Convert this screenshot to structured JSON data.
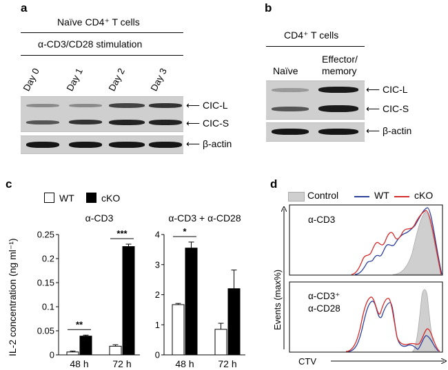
{
  "panel_a": {
    "label": "a",
    "title": "Naïve CD4⁺ T cells",
    "subtitle": "α-CD3/CD28 stimulation",
    "lanes": [
      "Day 0",
      "Day 1",
      "Day 2",
      "Day 3"
    ],
    "bands": [
      "CIC-L",
      "CIC-S",
      "β-actin"
    ]
  },
  "panel_b": {
    "label": "b",
    "title": "CD4⁺ T cells",
    "lanes": [
      "Naïve",
      "Effector/\nmemory"
    ],
    "lane_naive": "Naïve",
    "lane_eff1": "Effector/",
    "lane_eff2": "memory",
    "bands": [
      "CIC-L",
      "CIC-S",
      "β-actin"
    ]
  },
  "panel_c": {
    "label": "c",
    "legend": [
      "WT",
      "cKO"
    ],
    "ylabel": "IL-2 concentration (ng ml⁻¹)",
    "colors": {
      "WT": "#ffffff",
      "cKO": "#000000"
    }
  },
  "panel_d": {
    "label": "d",
    "legend": [
      "Control",
      "WT",
      "cKO"
    ],
    "colors": {
      "Control": "#c8c8c8",
      "WT": "#2a3f9a",
      "cKO": "#d42a2a"
    },
    "top_label": "α-CD3",
    "bottom_label_1": "α-CD3⁺",
    "bottom_label_2": "α-CD28",
    "ylabel": "Events (max%)",
    "xlabel": "CTV"
  },
  "chart_data": [
    {
      "type": "bar",
      "title": "α-CD3",
      "categories": [
        "48 h",
        "72 h"
      ],
      "series": [
        {
          "name": "WT",
          "values": [
            0.006,
            0.018
          ],
          "errors": [
            0.002,
            0.003
          ]
        },
        {
          "name": "cKO",
          "values": [
            0.039,
            0.225
          ],
          "errors": [
            0.002,
            0.005
          ]
        }
      ],
      "ylim": [
        0,
        0.25
      ],
      "yticks": [
        "0",
        "0.05",
        "0.1",
        "0.15",
        "0.2",
        "0.25"
      ],
      "significance": [
        "**",
        "***"
      ]
    },
    {
      "type": "bar",
      "title": "α-CD3 + α-CD28",
      "categories": [
        "48 h",
        "72 h"
      ],
      "series": [
        {
          "name": "WT",
          "values": [
            1.67,
            0.85
          ],
          "errors": [
            0.04,
            0.2
          ]
        },
        {
          "name": "cKO",
          "values": [
            3.55,
            2.2
          ],
          "errors": [
            0.2,
            0.62
          ]
        }
      ],
      "ylim": [
        0,
        4
      ],
      "yticks": [
        "0",
        "1",
        "2",
        "3",
        "4"
      ],
      "significance": [
        "*",
        ""
      ]
    }
  ]
}
